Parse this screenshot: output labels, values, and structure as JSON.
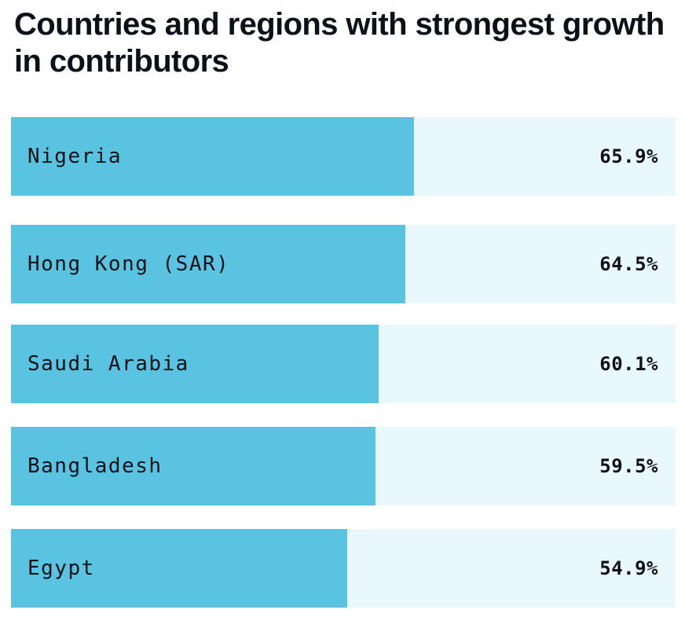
{
  "chart_data": {
    "type": "bar",
    "orientation": "horizontal",
    "title": "Countries and regions with strongest growth in contributors",
    "categories": [
      "Nigeria",
      "Hong Kong (SAR)",
      "Saudi Arabia",
      "Bangladesh",
      "Egypt"
    ],
    "values": [
      65.9,
      64.5,
      60.1,
      59.5,
      54.9
    ],
    "value_labels": [
      "65.9%",
      "64.5%",
      "60.1%",
      "59.5%",
      "54.9%"
    ],
    "unit": "%",
    "xlim": [
      0,
      108.6
    ],
    "grid": false,
    "legend": "none",
    "colors": {
      "bar": "#59c3e1",
      "track": "#e8f8fc",
      "text": "#0d1117"
    }
  }
}
